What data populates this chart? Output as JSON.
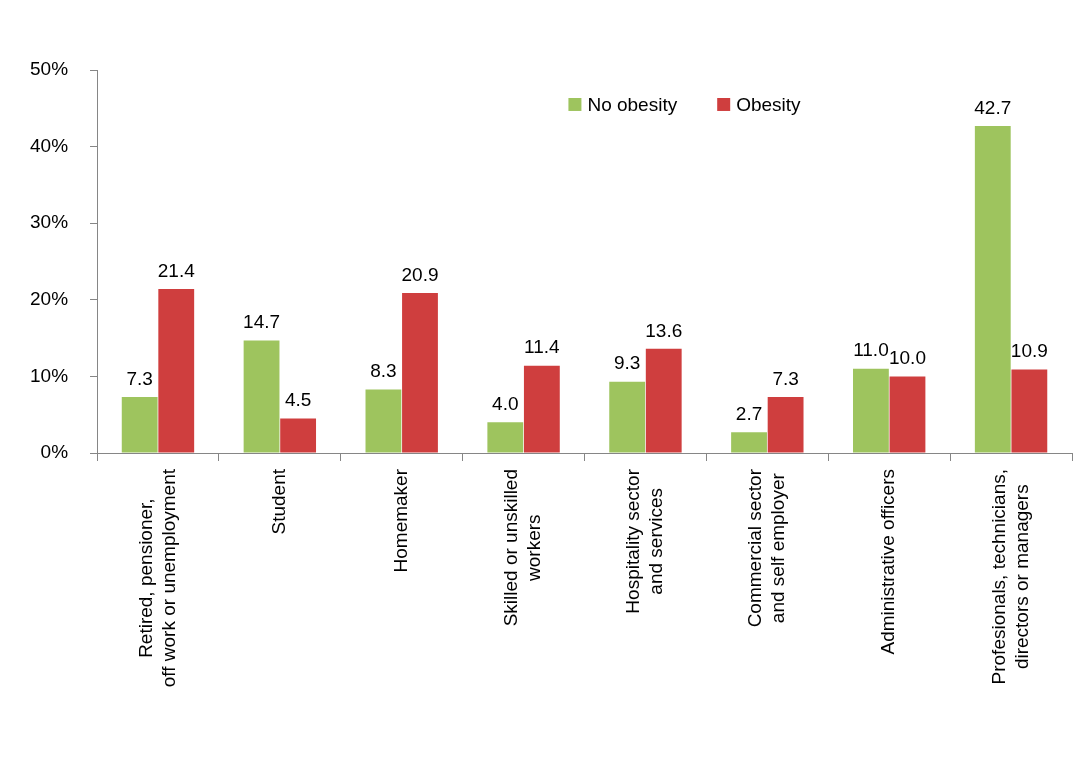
{
  "chart_data": {
    "type": "bar",
    "categories": [
      "Retired, pensioner,\noff work or unemployment",
      "Student",
      "Homemaker",
      "Skilled or unskilled\nworkers",
      "Hospitality sector\nand services",
      "Commercial sector\nand self employer",
      "Administrative officers",
      "Profesionals, technicians,\ndirectors or managers"
    ],
    "series": [
      {
        "name": "No obesity",
        "color": "#9ec45e",
        "values": [
          7.3,
          14.7,
          8.3,
          4.0,
          9.3,
          2.7,
          11.0,
          42.7
        ],
        "value_labels": [
          "7.3",
          "14.7",
          "8.3",
          "4.0",
          "9.3",
          "2.7",
          "11.0",
          "42.7"
        ]
      },
      {
        "name": "Obesity",
        "color": "#cf3e3e",
        "values": [
          21.4,
          4.5,
          20.9,
          11.4,
          13.6,
          7.3,
          10.0,
          10.9
        ],
        "value_labels": [
          "21.4",
          "4.5",
          "20.9",
          "11.4",
          "13.6",
          "7.3",
          "10.0",
          "10.9"
        ]
      }
    ],
    "ylim": [
      0,
      50
    ],
    "yticks": [
      {
        "value": 0,
        "label": "0%"
      },
      {
        "value": 10,
        "label": "10%"
      },
      {
        "value": 20,
        "label": "20%"
      },
      {
        "value": 30,
        "label": "30%"
      },
      {
        "value": 40,
        "label": "40%"
      },
      {
        "value": 50,
        "label": "50%"
      }
    ],
    "legend": "top"
  }
}
